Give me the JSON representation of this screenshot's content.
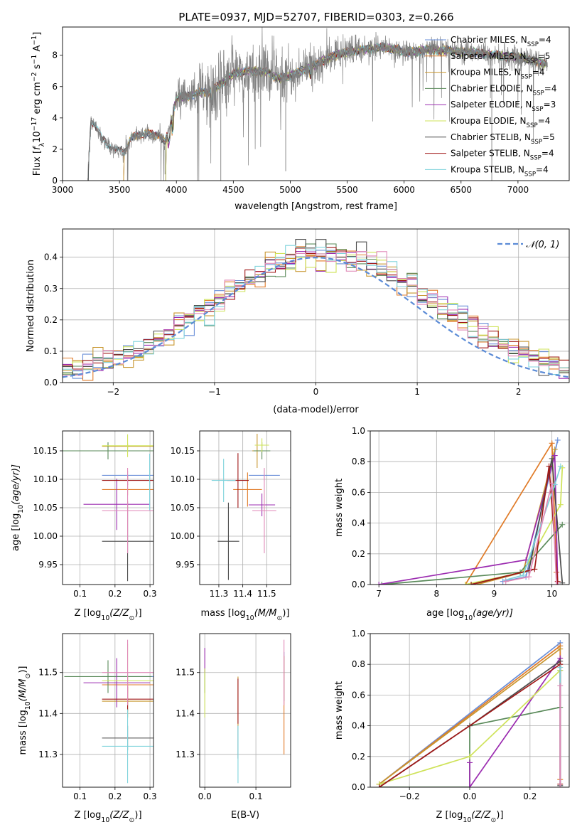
{
  "palette": [
    "#6a8fd8",
    "#e07b28",
    "#c8962e",
    "#5a8a5a",
    "#9b2bb0",
    "#cfe35a",
    "#4a4a4a",
    "#a01818",
    "#7fd3dc",
    "#e089b8"
  ],
  "chart_data": [
    {
      "id": "spectrum",
      "type": "line",
      "title": "PLATE=0937, MJD=52707, FIBERID=0303, z=0.266",
      "xlabel": "wavelength [Angstrom, rest frame]",
      "ylabel_parts": [
        "Flux [",
        "f",
        "λ",
        "10",
        "−17",
        " erg cm",
        "−2",
        " s",
        "−1",
        " A",
        "−1",
        "]"
      ],
      "xlim": [
        3000,
        7450
      ],
      "ylim": [
        0,
        9.8
      ],
      "xticks": [
        3000,
        3500,
        4000,
        4500,
        5000,
        5500,
        6000,
        6500,
        7000
      ],
      "yticks": [
        0,
        2,
        4,
        6,
        8
      ],
      "grid": false,
      "legend_position": "top-right",
      "data_color": "#808080",
      "observed_profile": {
        "x": [
          3220,
          3250,
          3300,
          3350,
          3400,
          3450,
          3500,
          3550,
          3600,
          3650,
          3700,
          3750,
          3800,
          3850,
          3900,
          3950,
          4000,
          4100,
          4200,
          4300,
          4400,
          4500,
          4600,
          4700,
          4800,
          4900,
          5000,
          5100,
          5200,
          5300,
          5400,
          5500,
          5600,
          5700,
          5800,
          5900,
          6000,
          6100,
          6200,
          6300,
          6400,
          6500,
          6600,
          6700,
          6800,
          6900,
          7000,
          7100,
          7200,
          7260
        ],
        "y": [
          0,
          3.9,
          3.4,
          2.6,
          2.3,
          2.0,
          1.9,
          1.9,
          2.7,
          2.8,
          3.0,
          3.0,
          2.9,
          3.0,
          2.4,
          3.6,
          5.3,
          5.4,
          5.6,
          5.7,
          6.2,
          6.8,
          7.0,
          7.0,
          6.9,
          6.5,
          6.7,
          7.0,
          7.3,
          7.7,
          8.0,
          8.2,
          8.3,
          8.4,
          8.5,
          8.4,
          8.2,
          8.2,
          8.4,
          8.3,
          8.3,
          8.2,
          8.2,
          8.1,
          8.0,
          7.9,
          7.9,
          7.7,
          7.5,
          7.4
        ]
      },
      "series": [
        {
          "name": "Chabrier MILES, N_SSP=4",
          "label": [
            "Chabrier MILES, N",
            "SSP",
            "=4"
          ],
          "start": 3530
        },
        {
          "name": "Salpeter MILES, N_SSP=5",
          "label": [
            "Salpeter MILES, N",
            "SSP",
            "=5"
          ],
          "start": 3530
        },
        {
          "name": "Kroupa MILES, N_SSP=4",
          "label": [
            "Kroupa MILES, N",
            "SSP",
            "=4"
          ],
          "start": 3530
        },
        {
          "name": "Chabrier ELODIE, N_SSP=4",
          "label": [
            "Chabrier ELODIE, N",
            "SSP",
            "=4"
          ],
          "start": 3900
        },
        {
          "name": "Salpeter ELODIE, N_SSP=3",
          "label": [
            "Salpeter ELODIE, N",
            "SSP",
            "=3"
          ],
          "start": 3900
        },
        {
          "name": "Kroupa ELODIE, N_SSP=4",
          "label": [
            "Kroupa ELODIE, N",
            "SSP",
            "=4"
          ],
          "start": 3900
        },
        {
          "name": "Chabrier STELIB, N_SSP=5",
          "label": [
            "Chabrier STELIB, N",
            "SSP",
            "=5"
          ],
          "start": 3220
        },
        {
          "name": "Salpeter STELIB, N_SSP=4",
          "label": [
            "Salpeter STELIB, N",
            "SSP",
            "=4"
          ],
          "start": 3220
        },
        {
          "name": "Kroupa STELIB, N_SSP=4",
          "label": [
            "Kroupa STELIB, N",
            "SSP",
            "=4"
          ],
          "start": 3220
        }
      ]
    },
    {
      "id": "residuals",
      "type": "line",
      "xlabel": "(data-model)/error",
      "ylabel": "Normed distribution",
      "xlim": [
        -2.5,
        2.5
      ],
      "ylim": [
        0,
        0.49
      ],
      "xticks": [
        -2,
        -1,
        0,
        1,
        2
      ],
      "yticks": [
        0.0,
        0.1,
        0.2,
        0.3,
        0.4
      ],
      "grid": true,
      "legend_position": "top-right",
      "normal_label": "𝒩(0, 1)",
      "normal_color": "#5b8bd6",
      "bin_width": 0.1
    },
    {
      "id": "age-vs-Z",
      "type": "scatter",
      "xlabel_parts": [
        "Z [log",
        "10",
        "(Z/Z",
        "⊙",
        ")]"
      ],
      "ylabel_parts": [
        "age  [log",
        "10",
        "(age/yr)]"
      ],
      "xlim": [
        0.05,
        0.31
      ],
      "ylim": [
        9.915,
        10.185
      ],
      "xticks": [
        0.1,
        0.2,
        0.3
      ],
      "yticks": [
        9.95,
        10.0,
        10.05,
        10.1,
        10.15
      ],
      "grid": true,
      "points": [
        {
          "x": 0.236,
          "y": 10.107,
          "xerr": 0.073,
          "yerr": 0.008
        },
        {
          "x": 0.236,
          "y": 10.082,
          "xerr": 0.073,
          "yerr": 0.01
        },
        {
          "x": 0.236,
          "y": 10.158,
          "xerr": 0.073,
          "yerr": 0.005
        },
        {
          "x": 0.18,
          "y": 10.15,
          "xerr": 0.13,
          "yerr": 0.015
        },
        {
          "x": 0.205,
          "y": 10.056,
          "xerr": 0.095,
          "yerr": 0.045
        },
        {
          "x": 0.236,
          "y": 10.159,
          "xerr": 0.073,
          "yerr": 0.02
        },
        {
          "x": 0.236,
          "y": 9.991,
          "xerr": 0.073,
          "yerr": 0.07
        },
        {
          "x": 0.236,
          "y": 10.098,
          "xerr": 0.073,
          "yerr": 0.008
        },
        {
          "x": 0.299,
          "y": 10.095,
          "xerr": 0.001,
          "yerr": 0.05
        },
        {
          "x": 0.236,
          "y": 10.045,
          "xerr": 0.073,
          "yerr": 0.075
        }
      ]
    },
    {
      "id": "age-vs-mass",
      "type": "scatter",
      "xlabel_parts": [
        "mass [log",
        "10",
        "(M/M",
        "⊙",
        ")]"
      ],
      "xlim": [
        11.22,
        11.6
      ],
      "ylim": [
        9.915,
        10.185
      ],
      "xticks": [
        11.3,
        11.4,
        11.5
      ],
      "yticks": [
        9.95,
        10.0,
        10.05,
        10.1,
        10.15
      ],
      "grid": true,
      "points": [
        {
          "x": 11.49,
          "y": 10.107,
          "xerr": 0.065,
          "yerr": 0.01
        },
        {
          "x": 11.42,
          "y": 10.082,
          "xerr": 0.06,
          "yerr": 0.03
        },
        {
          "x": 11.46,
          "y": 10.15,
          "xerr": 0.02,
          "yerr": 0.03
        },
        {
          "x": 11.48,
          "y": 10.15,
          "xerr": 0.035,
          "yerr": 0.015
        },
        {
          "x": 11.48,
          "y": 10.055,
          "xerr": 0.055,
          "yerr": 0.02
        },
        {
          "x": 11.48,
          "y": 10.16,
          "xerr": 0.03,
          "yerr": 0.012
        },
        {
          "x": 11.34,
          "y": 9.991,
          "xerr": 0.045,
          "yerr": 0.068
        },
        {
          "x": 11.38,
          "y": 10.098,
          "xerr": 0.045,
          "yerr": 0.048
        },
        {
          "x": 11.32,
          "y": 10.098,
          "xerr": 0.05,
          "yerr": 0.038
        },
        {
          "x": 11.49,
          "y": 10.045,
          "xerr": 0.05,
          "yerr": 0.075
        }
      ]
    },
    {
      "id": "weight-vs-age",
      "type": "line",
      "xlabel_parts": [
        "age  [log",
        "10",
        "(age/yr)]"
      ],
      "ylabel": "mass weight",
      "xlim": [
        6.85,
        10.3
      ],
      "ylim": [
        0,
        1
      ],
      "xticks": [
        7,
        8,
        9,
        10
      ],
      "yticks": [
        0.0,
        0.2,
        0.4,
        0.6,
        0.8,
        1.0
      ],
      "grid": true,
      "series": [
        {
          "x": [
            9.15,
            9.55,
            10.1
          ],
          "y": [
            0.02,
            0.05,
            0.94
          ]
        },
        {
          "x": [
            8.5,
            10.0,
            10.08
          ],
          "y": [
            0.0,
            0.92,
            0.08
          ]
        },
        {
          "x": [
            8.7,
            9.5,
            10.05
          ],
          "y": [
            0.0,
            0.08,
            0.88
          ]
        },
        {
          "x": [
            7.05,
            9.45,
            10.18
          ],
          "y": [
            0.0,
            0.08,
            0.39
          ]
        },
        {
          "x": [
            7.0,
            9.55,
            10.05,
            10.1
          ],
          "y": [
            0.0,
            0.16,
            0.84,
            0.0
          ]
        },
        {
          "x": [
            8.5,
            9.5,
            10.15,
            10.18
          ],
          "y": [
            0.0,
            0.08,
            0.52,
            0.76
          ]
        },
        {
          "x": [
            8.6,
            9.6,
            10.0,
            10.18
          ],
          "y": [
            0.0,
            0.09,
            0.82,
            0.01
          ]
        },
        {
          "x": [
            8.6,
            9.7,
            9.95,
            10.1
          ],
          "y": [
            0.0,
            0.1,
            0.77,
            0.02
          ]
        },
        {
          "x": [
            9.2,
            9.5,
            10.05,
            10.15
          ],
          "y": [
            0.03,
            0.06,
            0.65,
            0.77
          ]
        },
        {
          "x": [
            9.2,
            9.6,
            10.0,
            10.08
          ],
          "y": [
            0.02,
            0.05,
            0.66,
            0.0
          ]
        }
      ]
    },
    {
      "id": "mass-vs-Z",
      "type": "scatter",
      "xlabel_parts": [
        "Z [log",
        "10",
        "(Z/Z",
        "⊙",
        ")]"
      ],
      "ylabel_parts": [
        "mass [log",
        "10",
        "(M/M",
        "⊙",
        ")]"
      ],
      "xlim": [
        0.05,
        0.31
      ],
      "ylim": [
        11.22,
        11.595
      ],
      "xticks": [
        0.1,
        0.2,
        0.3
      ],
      "yticks": [
        11.3,
        11.4,
        11.5
      ],
      "grid": true,
      "points": [
        {
          "x": 0.236,
          "y": 11.49,
          "xerr": 0.073,
          "yerr": 0.01
        },
        {
          "x": 0.236,
          "y": 11.47,
          "xerr": 0.073,
          "yerr": 0.02
        },
        {
          "x": 0.236,
          "y": 11.43,
          "xerr": 0.073,
          "yerr": 0.04
        },
        {
          "x": 0.18,
          "y": 11.49,
          "xerr": 0.125,
          "yerr": 0.04
        },
        {
          "x": 0.205,
          "y": 11.475,
          "xerr": 0.095,
          "yerr": 0.06
        },
        {
          "x": 0.236,
          "y": 11.48,
          "xerr": 0.073,
          "yerr": 0.09
        },
        {
          "x": 0.236,
          "y": 11.34,
          "xerr": 0.073,
          "yerr": 0.03
        },
        {
          "x": 0.236,
          "y": 11.435,
          "xerr": 0.073,
          "yerr": 0.03
        },
        {
          "x": 0.236,
          "y": 11.32,
          "xerr": 0.073,
          "yerr": 0.09
        },
        {
          "x": 0.236,
          "y": 11.5,
          "xerr": 0.073,
          "yerr": 0.08
        }
      ]
    },
    {
      "id": "mass-vs-ebv",
      "type": "scatter",
      "xlabel": "E(B-V)",
      "xlim": [
        -0.01,
        0.168
      ],
      "ylim": [
        11.22,
        11.595
      ],
      "xticks": [
        0.0,
        0.1
      ],
      "yticks": [
        11.3,
        11.4,
        11.5
      ],
      "grid": true,
      "points": [
        {
          "x": 0.155,
          "y": 11.49,
          "xerr": 0.0,
          "yerr": 0.06
        },
        {
          "x": 0.155,
          "y": 11.42,
          "xerr": 0.0,
          "yerr": 0.12
        },
        {
          "x": 0.065,
          "y": 11.43,
          "xerr": 0.0,
          "yerr": 0.06
        },
        {
          "x": 0.0,
          "y": 11.48,
          "xerr": 0.0,
          "yerr": 0.03
        },
        {
          "x": 0.0,
          "y": 11.53,
          "xerr": 0.0,
          "yerr": 0.03
        },
        {
          "x": 0.0,
          "y": 11.45,
          "xerr": 0.0,
          "yerr": 0.06
        },
        {
          "x": 0.065,
          "y": 11.33,
          "xerr": 0.0,
          "yerr": 0.04
        },
        {
          "x": 0.065,
          "y": 11.43,
          "xerr": 0.0,
          "yerr": 0.055
        },
        {
          "x": 0.065,
          "y": 11.3,
          "xerr": 0.0,
          "yerr": 0.07
        },
        {
          "x": 0.155,
          "y": 11.5,
          "xerr": 0.0,
          "yerr": 0.08
        }
      ]
    },
    {
      "id": "weight-vs-Z",
      "type": "line",
      "xlabel_parts": [
        "Z [log",
        "10",
        "(Z/Z",
        "⊙",
        ")]"
      ],
      "ylabel": "mass weight",
      "xlim": [
        -0.33,
        0.33
      ],
      "ylim": [
        0,
        1
      ],
      "xticks": [
        -0.2,
        0.0,
        0.2
      ],
      "yticks": [
        0.0,
        0.2,
        0.4,
        0.6,
        0.8,
        1.0
      ],
      "grid": true,
      "series": [
        {
          "x": [
            -0.3,
            0.3,
            0.3
          ],
          "y": [
            0.02,
            0.94,
            0.0
          ]
        },
        {
          "x": [
            -0.3,
            0.3,
            0.3
          ],
          "y": [
            0.02,
            0.92,
            0.05
          ]
        },
        {
          "x": [
            -0.3,
            0.3
          ],
          "y": [
            0.02,
            0.9
          ]
        },
        {
          "x": [
            -0.3,
            0.0,
            0.0,
            0.3,
            0.3
          ],
          "y": [
            0.0,
            0.0,
            0.4,
            0.52,
            0.76
          ]
        },
        {
          "x": [
            0.0,
            0.0,
            0.3,
            0.3
          ],
          "y": [
            0.16,
            0.0,
            0.84,
            0.0
          ]
        },
        {
          "x": [
            -0.3,
            0.0,
            0.3
          ],
          "y": [
            0.02,
            0.2,
            0.76
          ]
        },
        {
          "x": [
            -0.3,
            0.0,
            0.3,
            0.3
          ],
          "y": [
            0.0,
            0.4,
            0.82,
            0.01
          ]
        },
        {
          "x": [
            -0.3,
            0.3,
            0.3
          ],
          "y": [
            0.0,
            0.8,
            0.02
          ]
        },
        {
          "x": [
            0.3,
            0.3
          ],
          "y": [
            0.0,
            0.78
          ]
        },
        {
          "x": [
            0.3,
            0.3
          ],
          "y": [
            0.0,
            0.66
          ]
        }
      ]
    }
  ]
}
